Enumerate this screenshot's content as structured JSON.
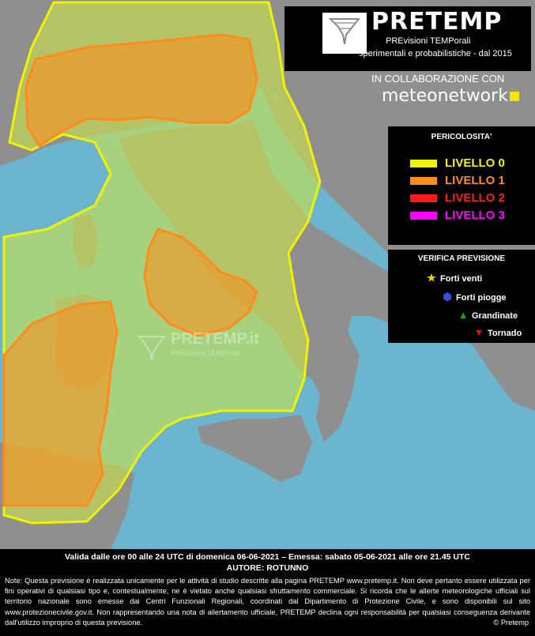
{
  "header": {
    "brand": "PRETEMP",
    "subtitle1": "PREvisioni TEMPorali",
    "subtitle2": "sperimentali e probabilistiche - dal 2015",
    "collab": "IN COLLABORAZIONE CON",
    "partner": "meteonetwork"
  },
  "legend": {
    "title": "PERICOLOSITA'",
    "levels": [
      {
        "label": "LIVELLO 0",
        "color": "#f2f200"
      },
      {
        "label": "LIVELLO 1",
        "color": "#ff8c1a"
      },
      {
        "label": "LIVELLO 2",
        "color": "#ff1a1a"
      },
      {
        "label": "LIVELLO 3",
        "color": "#ff00ff"
      }
    ]
  },
  "verifica": {
    "title": "VERIFICA PREVISIONE",
    "items": [
      {
        "label": "Forti venti",
        "icon": "star-icon",
        "color": "#f5d000"
      },
      {
        "label": "Forti piogge",
        "icon": "hexagon-icon",
        "color": "#3a4ddb"
      },
      {
        "label": "Grandinate",
        "icon": "triangle-up-icon",
        "color": "#1b9e1b"
      },
      {
        "label": "Tornado",
        "icon": "triangle-down-icon",
        "color": "#e01010"
      }
    ]
  },
  "watermark": {
    "text": "PRETEMP.it",
    "sub": "PREvisioni TEMPorali"
  },
  "footer": {
    "validity": "Valida dalle ore 00 alle 24 UTC di domenica 06-06-2021 – Emessa: sabato 05-06-2021 alle ore 21.45 UTC",
    "author": "AUTORE: ROTUNNO",
    "note": "Note: Questa previsione è realizzata unicamente per le attività di studio descritte alla pagina PRETEMP www.pretemp.it. Non deve pertanto essere utilizzata per fini operativi di qualsiasi tipo e, contestualmente, ne è vietato anche qualsiasi sfruttamento commerciale. Si ricorda che le allerte meteorologiche ufficiali sul territorio nazionale sono emesse dai Centri Funzionali Regionali, coordinati dal Dipartimento di Protezione Civile, e sono disponibili sul sito www.protezionecivile.gov.it. Non rappresentando una nota di allertamento ufficiale, PRETEMP declina ogni responsabilità per qualsiasi conseguenza derivante dall’utilizzo improprio di questa previsione.",
    "copyright": "© Pretemp"
  }
}
